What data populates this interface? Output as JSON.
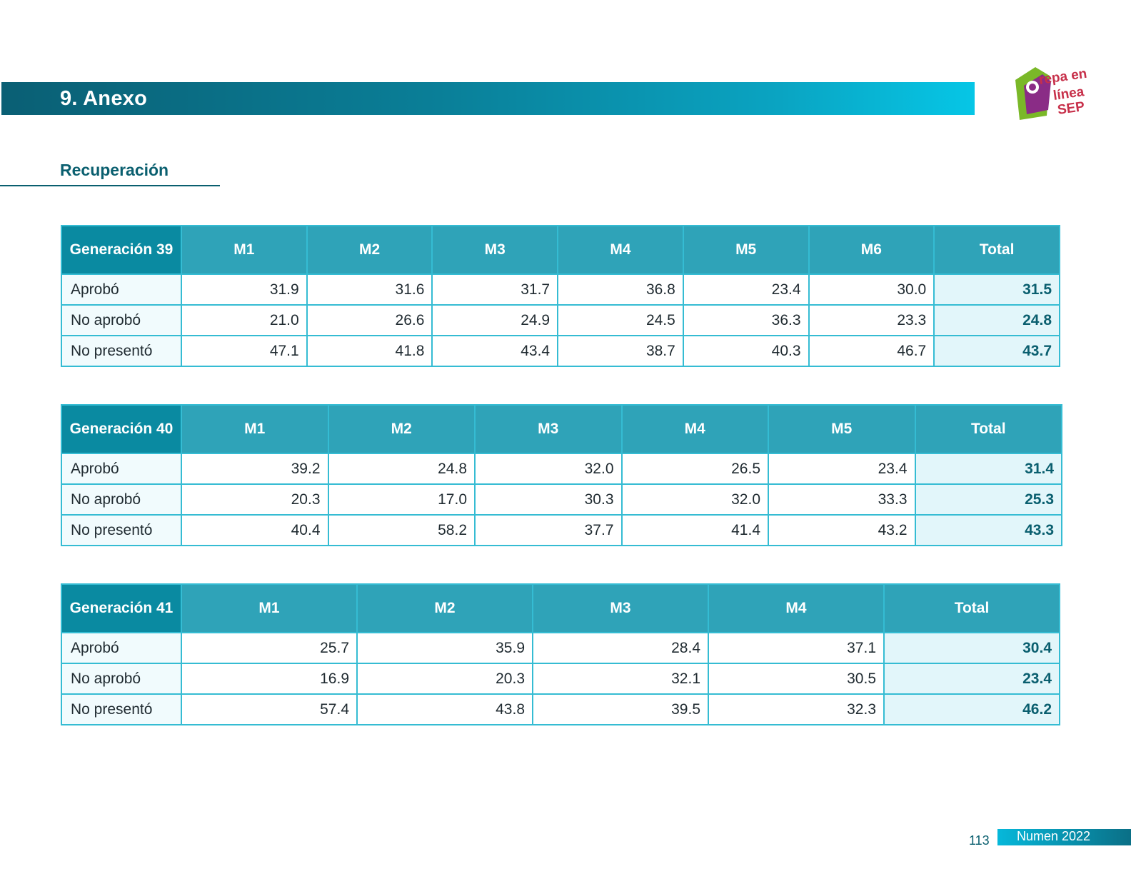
{
  "header": {
    "title": "9. Anexo"
  },
  "logo": {
    "text": "Prepa en línea SEP"
  },
  "section": {
    "title": "Recuperación"
  },
  "tables": [
    {
      "corner": "Generación 39",
      "columns": [
        "M1",
        "M2",
        "M3",
        "M4",
        "M5",
        "M6",
        "Total"
      ],
      "rows": [
        {
          "label": "Aprobó",
          "values": [
            "31.9",
            "31.6",
            "31.7",
            "36.8",
            "23.4",
            "30.0"
          ],
          "total": "31.5"
        },
        {
          "label": "No aprobó",
          "values": [
            "21.0",
            "26.6",
            "24.9",
            "24.5",
            "36.3",
            "23.3"
          ],
          "total": "24.8"
        },
        {
          "label": "No presentó",
          "values": [
            "47.1",
            "41.8",
            "43.4",
            "38.7",
            "40.3",
            "46.7"
          ],
          "total": "43.7"
        }
      ]
    },
    {
      "corner": "Generación 40",
      "columns": [
        "M1",
        "M2",
        "M3",
        "M4",
        "M5",
        "Total"
      ],
      "rows": [
        {
          "label": "Aprobó",
          "values": [
            "39.2",
            "24.8",
            "32.0",
            "26.5",
            "23.4"
          ],
          "total": "31.4"
        },
        {
          "label": "No aprobó",
          "values": [
            "20.3",
            "17.0",
            "30.3",
            "32.0",
            "33.3"
          ],
          "total": "25.3"
        },
        {
          "label": "No presentó",
          "values": [
            "40.4",
            "58.2",
            "37.7",
            "41.4",
            "43.2"
          ],
          "total": "43.3"
        }
      ]
    },
    {
      "corner": "Generación 41",
      "columns": [
        "M1",
        "M2",
        "M3",
        "M4",
        "Total"
      ],
      "rows": [
        {
          "label": "Aprobó",
          "values": [
            "25.7",
            "35.9",
            "28.4",
            "37.1"
          ],
          "total": "30.4"
        },
        {
          "label": "No aprobó",
          "values": [
            "16.9",
            "20.3",
            "32.1",
            "30.5"
          ],
          "total": "23.4"
        },
        {
          "label": "No presentó",
          "values": [
            "57.4",
            "43.8",
            "39.5",
            "32.3"
          ],
          "total": "46.2"
        }
      ]
    }
  ],
  "footer": {
    "page_number": "113",
    "publication": "Numen 2022"
  }
}
